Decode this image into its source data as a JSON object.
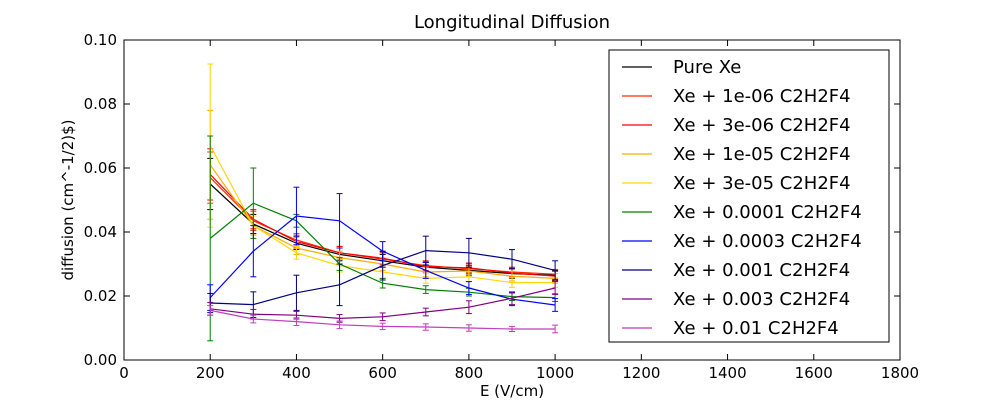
{
  "chart_data": {
    "type": "line",
    "title": "Longitudinal Diffusion",
    "xlabel": "E (V/cm)",
    "ylabel": "diffusion (cm^-1/2)$)",
    "xlim": [
      0,
      1800
    ],
    "ylim": [
      0.0,
      0.1
    ],
    "x_ticks": [
      "0",
      "200",
      "400",
      "600",
      "800",
      "1000",
      "1200",
      "1400",
      "1600",
      "1800"
    ],
    "y_ticks": [
      "0.00",
      "0.02",
      "0.04",
      "0.06",
      "0.08",
      "0.10"
    ],
    "grid": false,
    "legend_position": "top-right",
    "x": [
      200,
      300,
      400,
      500,
      600,
      700,
      800,
      900,
      1000
    ],
    "series": [
      {
        "name": "Pure Xe",
        "color": "#000000",
        "values": [
          0.055,
          0.0425,
          0.0365,
          0.033,
          0.031,
          0.029,
          0.028,
          0.027,
          0.0265
        ],
        "errors": [
          0.008,
          0.003,
          0.002,
          0.002,
          0.002,
          0.0015,
          0.0015,
          0.0015,
          0.0015
        ]
      },
      {
        "name": "Xe + 1e-06 C2H2F4",
        "color": "#ff2a00",
        "values": [
          0.057,
          0.0435,
          0.0375,
          0.0335,
          0.0315,
          0.0295,
          0.0285,
          0.0275,
          0.0268
        ],
        "errors": [
          0.008,
          0.003,
          0.002,
          0.002,
          0.002,
          0.0015,
          0.0015,
          0.0015,
          0.0015
        ]
      },
      {
        "name": "Xe + 3e-06 C2H2F4",
        "color": "#ff0000",
        "values": [
          0.058,
          0.044,
          0.037,
          0.0335,
          0.0318,
          0.0292,
          0.0288,
          0.0272,
          0.0262
        ],
        "errors": [
          0.008,
          0.003,
          0.002,
          0.002,
          0.002,
          0.0015,
          0.0015,
          0.0015,
          0.0015
        ]
      },
      {
        "name": "Xe + 1e-05 C2H2F4",
        "color": "#ffaa00",
        "values": [
          0.061,
          0.042,
          0.035,
          0.032,
          0.03,
          0.0275,
          0.0278,
          0.0262,
          0.0255
        ],
        "errors": [
          0.017,
          0.003,
          0.002,
          0.002,
          0.002,
          0.0015,
          0.0015,
          0.0015,
          0.0015
        ]
      },
      {
        "name": "Xe + 3e-05 C2H2F4",
        "color": "#ffd700",
        "values": [
          0.067,
          0.042,
          0.0335,
          0.0295,
          0.0275,
          0.0255,
          0.026,
          0.0242,
          0.0242
        ],
        "errors": [
          0.0255,
          0.003,
          0.002,
          0.002,
          0.002,
          0.0015,
          0.0015,
          0.0015,
          0.0015
        ]
      },
      {
        "name": "Xe + 0.0001 C2H2F4",
        "color": "#008000",
        "values": [
          0.038,
          0.049,
          0.0435,
          0.03,
          0.024,
          0.022,
          0.0212,
          0.0198,
          0.0195
        ],
        "errors": [
          0.032,
          0.011,
          0.002,
          0.002,
          0.0015,
          0.0012,
          0.0012,
          0.0012,
          0.0012
        ]
      },
      {
        "name": "Xe + 0.0003 C2H2F4",
        "color": "#0000ff",
        "values": [
          0.0195,
          0.034,
          0.045,
          0.0435,
          0.034,
          0.028,
          0.0225,
          0.019,
          0.0172
        ],
        "errors": [
          0.004,
          0.008,
          0.009,
          0.0085,
          0.003,
          0.0025,
          0.002,
          0.002,
          0.002
        ]
      },
      {
        "name": "Xe + 0.001 C2H2F4",
        "color": "#000080",
        "values": [
          0.0178,
          0.0173,
          0.021,
          0.0235,
          0.0295,
          0.0342,
          0.0335,
          0.0315,
          0.028
        ],
        "errors": [
          0.003,
          0.004,
          0.0055,
          0.0065,
          0.0045,
          0.0045,
          0.0045,
          0.003,
          0.003
        ]
      },
      {
        "name": "Xe + 0.003 C2H2F4",
        "color": "#800080",
        "values": [
          0.016,
          0.0143,
          0.014,
          0.013,
          0.0135,
          0.015,
          0.0165,
          0.0193,
          0.0225
        ],
        "errors": [
          0.002,
          0.0015,
          0.0012,
          0.0012,
          0.0012,
          0.0012,
          0.002,
          0.002,
          0.002
        ]
      },
      {
        "name": "Xe + 0.01 C2H2F4",
        "color": "#bf3fbf",
        "values": [
          0.0155,
          0.0128,
          0.012,
          0.011,
          0.0105,
          0.0103,
          0.01,
          0.0097,
          0.0097
        ],
        "errors": [
          0.0015,
          0.0012,
          0.0012,
          0.0012,
          0.001,
          0.001,
          0.001,
          0.0008,
          0.0012
        ]
      }
    ]
  }
}
